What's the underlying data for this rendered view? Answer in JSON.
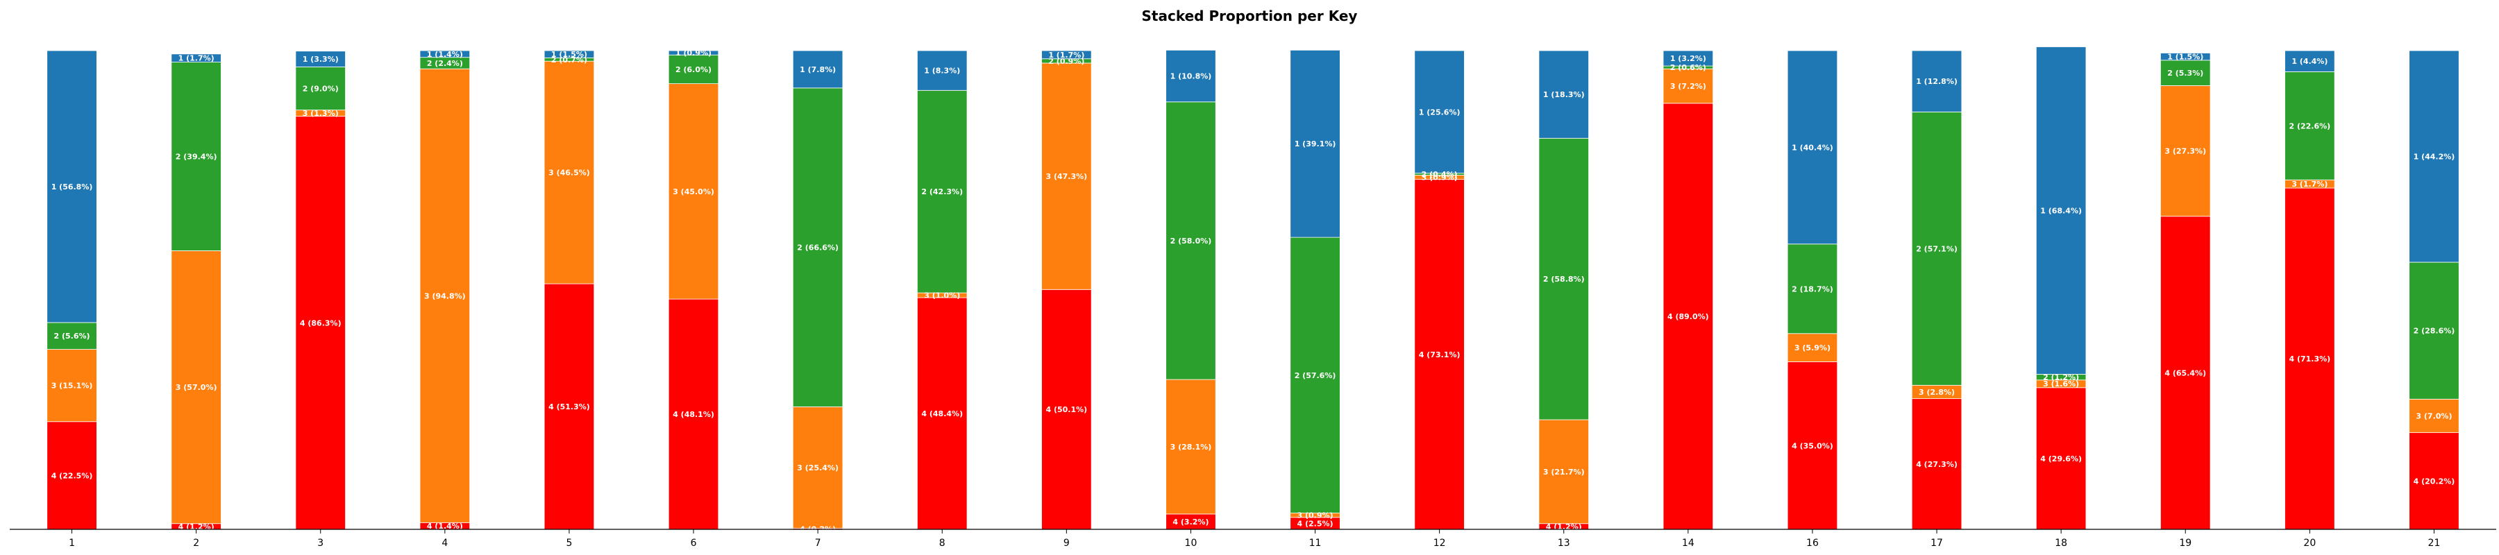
{
  "chart_data": {
    "type": "bar",
    "stacked": true,
    "normalized": true,
    "title": "Stacked Proportion per Key",
    "xlabel": "",
    "ylabel": "",
    "ylim": [
      0,
      100
    ],
    "grid": false,
    "legend": "none",
    "categories": [
      "1",
      "2",
      "3",
      "4",
      "5",
      "6",
      "7",
      "8",
      "9",
      "10",
      "11",
      "12",
      "13",
      "14",
      "16",
      "17",
      "18",
      "19",
      "20",
      "21"
    ],
    "series": [
      {
        "name": "4",
        "color": "#ff0000",
        "values": [
          22.5,
          1.2,
          86.3,
          1.4,
          51.3,
          48.1,
          0.2,
          48.4,
          50.1,
          3.2,
          2.5,
          73.1,
          1.2,
          89.0,
          35.0,
          27.3,
          29.6,
          65.4,
          71.3,
          20.2
        ]
      },
      {
        "name": "3",
        "color": "#ff7f0e",
        "values": [
          15.1,
          57.0,
          1.3,
          94.8,
          46.5,
          45.0,
          25.4,
          1.0,
          47.3,
          28.1,
          0.9,
          0.9,
          21.7,
          7.2,
          5.9,
          2.8,
          1.6,
          27.3,
          1.7,
          7.0
        ]
      },
      {
        "name": "2",
        "color": "#2ca02c",
        "values": [
          5.6,
          39.4,
          9.0,
          2.4,
          0.7,
          6.0,
          66.6,
          42.3,
          0.9,
          58.0,
          57.6,
          0.4,
          58.8,
          0.6,
          18.7,
          57.1,
          1.2,
          5.3,
          22.6,
          28.6
        ]
      },
      {
        "name": "1",
        "color": "#1f77b4",
        "values": [
          56.8,
          1.7,
          3.3,
          1.4,
          1.5,
          0.9,
          7.8,
          8.3,
          1.7,
          10.8,
          39.1,
          25.6,
          18.3,
          3.2,
          40.4,
          12.8,
          68.4,
          1.5,
          4.4,
          44.2
        ]
      }
    ]
  }
}
